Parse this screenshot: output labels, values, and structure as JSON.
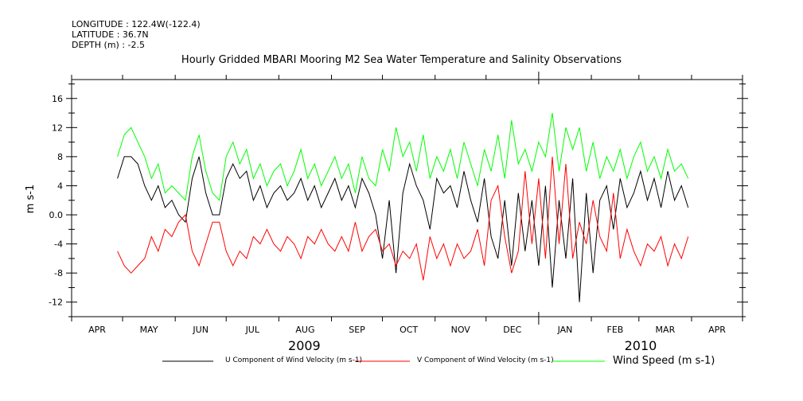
{
  "header": {
    "longitude": "LONGITUDE : 122.4W(-122.4)",
    "latitude": "LATITUDE : 36.7N",
    "depth": "DEPTH (m) : -2.5"
  },
  "chart_data": {
    "type": "line",
    "title": "Hourly Gridded MBARI Mooring M2 Sea Water Temperature and Salinity Observations",
    "ylabel": "m s-1",
    "xlabel": "",
    "ylim": [
      -14,
      18.6
    ],
    "yticks": [
      -12,
      -8,
      -4,
      0,
      4,
      8,
      12,
      16
    ],
    "ytick_labels": [
      "-12",
      "-8",
      "-4",
      "0.0",
      "4",
      "8",
      "12",
      "16"
    ],
    "x_units": "days since 2009-04-01",
    "xlim": [
      0,
      395
    ],
    "month_boundaries": [
      0,
      30,
      61,
      91,
      122,
      153,
      183,
      214,
      244,
      275,
      306,
      334,
      365,
      395
    ],
    "month_labels": [
      "APR",
      "MAY",
      "JUN",
      "JUL",
      "AUG",
      "SEP",
      "OCT",
      "NOV",
      "DEC",
      "JAN",
      "FEB",
      "MAR",
      "APR"
    ],
    "year_labels": [
      {
        "label": "2009",
        "day": 137
      },
      {
        "label": "2010",
        "day": 335
      }
    ],
    "year_boundary_day": 275,
    "x_start_day": 27,
    "x_step_days": 4,
    "legend_position": "bottom",
    "series": [
      {
        "name": "U Component of Wind Velocity (m s-1)",
        "color": "#000000",
        "values": [
          5,
          8,
          8,
          7,
          4,
          2,
          4,
          1,
          2,
          0,
          -1,
          5,
          8,
          3,
          0,
          0,
          5,
          7,
          5,
          6,
          2,
          4,
          1,
          3,
          4,
          2,
          3,
          5,
          2,
          4,
          1,
          3,
          5,
          2,
          4,
          1,
          5,
          3,
          0,
          -6,
          2,
          -8,
          3,
          7,
          4,
          2,
          -2,
          5,
          3,
          4,
          1,
          6,
          2,
          -1,
          5,
          -3,
          -6,
          2,
          -7,
          3,
          -5,
          2,
          -7,
          4,
          -10,
          2,
          -6,
          5,
          -12,
          3,
          -8,
          2,
          4,
          -2,
          5,
          1,
          3,
          6,
          2,
          5,
          1,
          6,
          2,
          4,
          1
        ]
      },
      {
        "name": "V Component of Wind Velocity (m s-1)",
        "color": "#ff0000",
        "values": [
          -5,
          -7,
          -8,
          -7,
          -6,
          -3,
          -5,
          -2,
          -3,
          -1,
          0,
          -5,
          -7,
          -4,
          -1,
          -1,
          -5,
          -7,
          -5,
          -6,
          -3,
          -4,
          -2,
          -4,
          -5,
          -3,
          -4,
          -6,
          -3,
          -4,
          -2,
          -4,
          -5,
          -3,
          -5,
          -1,
          -5,
          -3,
          -2,
          -5,
          -4,
          -7,
          -5,
          -6,
          -4,
          -9,
          -3,
          -6,
          -4,
          -7,
          -4,
          -6,
          -5,
          -2,
          -7,
          2,
          4,
          -3,
          -8,
          -5,
          6,
          -4,
          5,
          -6,
          8,
          -4,
          7,
          -6,
          -1,
          -4,
          2,
          -3,
          -5,
          3,
          -6,
          -2,
          -5,
          -7,
          -4,
          -5,
          -3,
          -7,
          -4,
          -6,
          -3
        ]
      },
      {
        "name": "Wind Speed (m s-1)",
        "color": "#00ff00",
        "values": [
          8,
          11,
          12,
          10,
          8,
          5,
          7,
          3,
          4,
          3,
          2,
          8,
          11,
          6,
          3,
          2,
          8,
          10,
          7,
          9,
          5,
          7,
          4,
          6,
          7,
          4,
          6,
          9,
          5,
          7,
          4,
          6,
          8,
          5,
          7,
          3,
          8,
          5,
          4,
          9,
          6,
          12,
          8,
          10,
          6,
          11,
          5,
          8,
          6,
          9,
          5,
          10,
          7,
          4,
          9,
          6,
          11,
          5,
          13,
          7,
          9,
          6,
          10,
          8,
          14,
          6,
          12,
          9,
          12,
          6,
          10,
          5,
          8,
          6,
          9,
          5,
          8,
          10,
          6,
          8,
          5,
          9,
          6,
          7,
          5
        ]
      }
    ]
  }
}
